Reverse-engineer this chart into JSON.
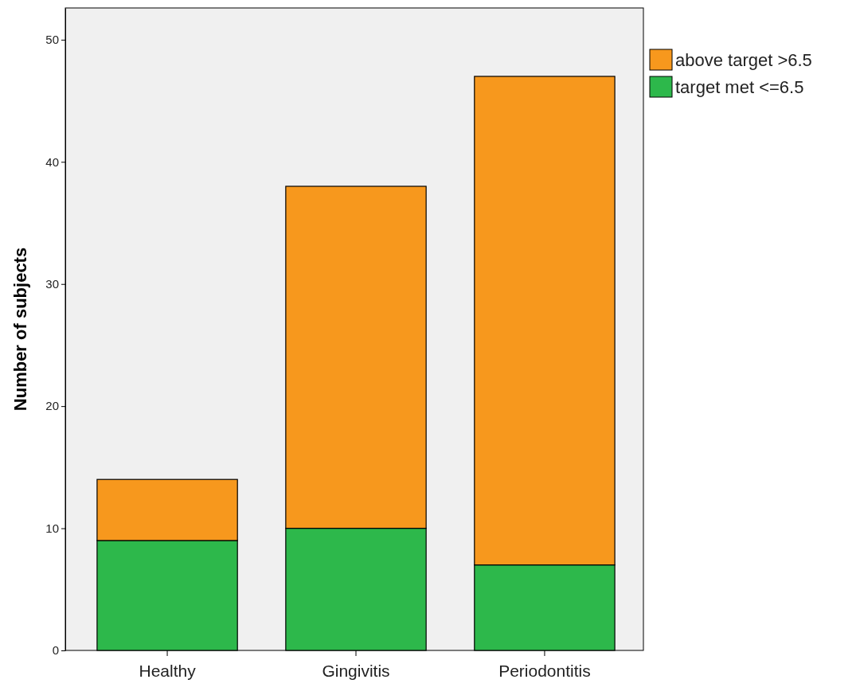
{
  "chart_data": {
    "type": "bar",
    "ylabel": "Number of subjects",
    "categories": [
      "Healthy",
      "Gingivitis",
      "Periodontitis"
    ],
    "series": [
      {
        "name": "target met <=6.5",
        "color": "#2db84b",
        "values": [
          9,
          10,
          7
        ]
      },
      {
        "name": "above target >6.5",
        "color": "#f7981d",
        "values": [
          5,
          28,
          40
        ]
      }
    ],
    "stacked": true,
    "ylim": [
      0,
      52.6
    ],
    "yticks": [
      0,
      10,
      20,
      30,
      40,
      50
    ],
    "grid": false,
    "legend": "top right"
  }
}
